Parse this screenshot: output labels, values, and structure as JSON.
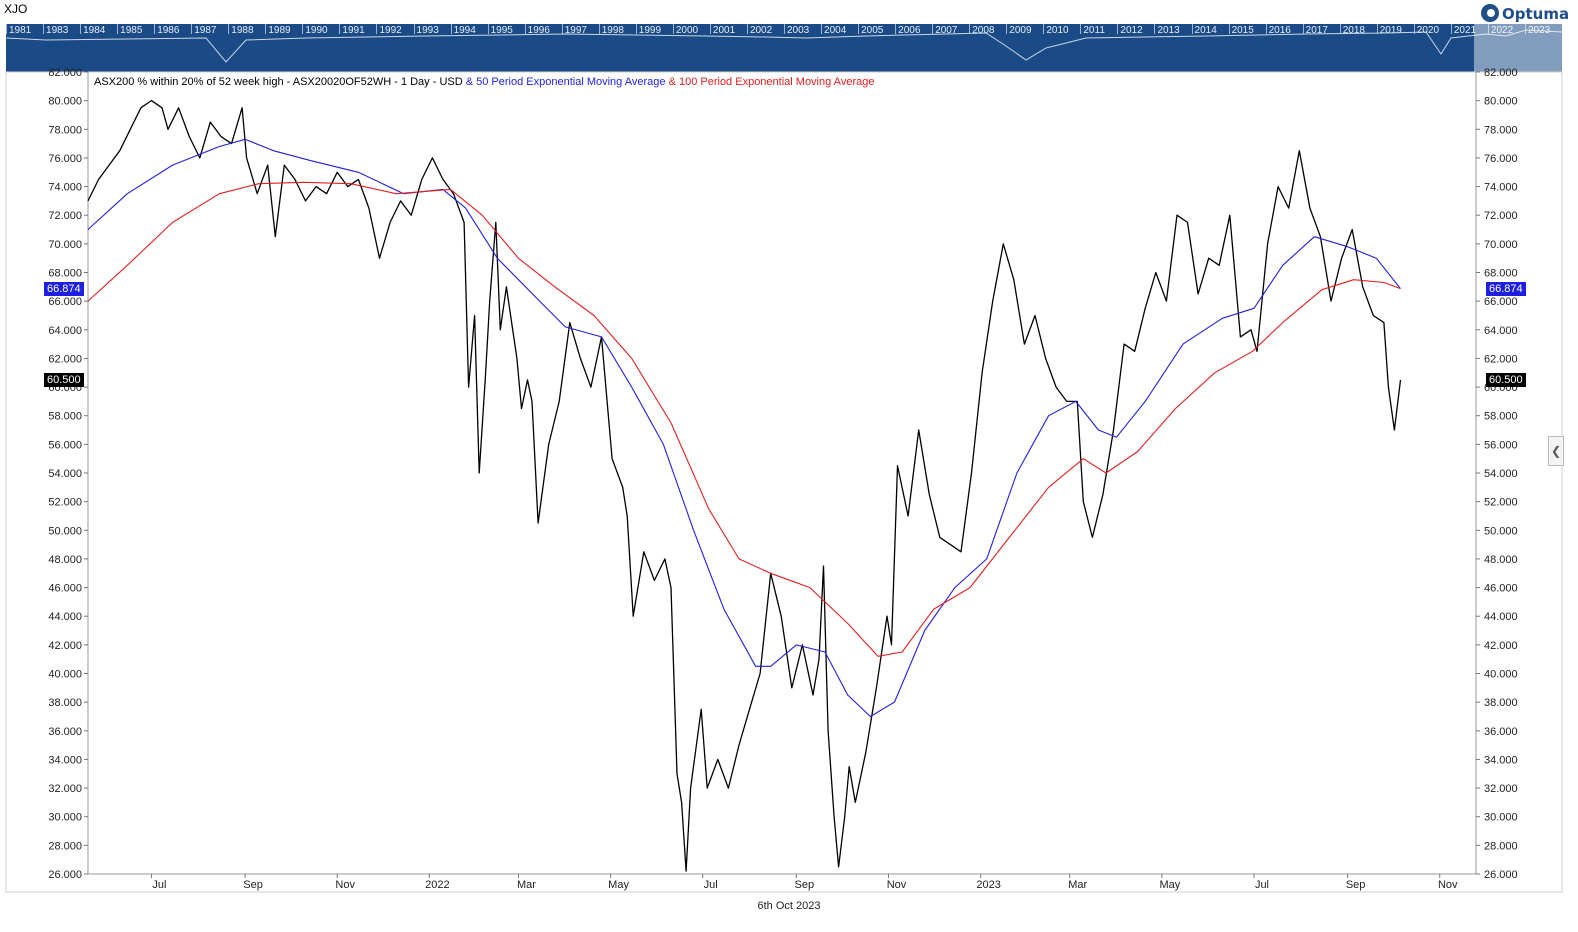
{
  "symbol": "XJO",
  "logo": {
    "text": "Optuma"
  },
  "navigator": {
    "years": [
      "1981",
      "1983",
      "1984",
      "1985",
      "1986",
      "1987",
      "1988",
      "1989",
      "1990",
      "1991",
      "1992",
      "1993",
      "1994",
      "1995",
      "1996",
      "1997",
      "1998",
      "1999",
      "2000",
      "2001",
      "2002",
      "2003",
      "2004",
      "2005",
      "2006",
      "2007",
      "2008",
      "2009",
      "2010",
      "2011",
      "2012",
      "2013",
      "2014",
      "2015",
      "2016",
      "2017",
      "2018",
      "2019",
      "2020",
      "2021",
      "2022",
      "2023"
    ]
  },
  "legend": {
    "main": "ASX200 % within 20% of 52 week high - ASX20020OF52WH - 1 Day - USD",
    "ema50": "& 50 Period Exponential Moving Average",
    "ema100": "& 100 Period Exponential Moving Average"
  },
  "tags": {
    "ema_value": "66.874",
    "last_value": "60.500"
  },
  "date_label": "6th Oct 2023",
  "colors": {
    "nav_bg": "#1b4b86",
    "price": "#000000",
    "ema50": "#1f1fe0",
    "ema100": "#e01f1f",
    "tag_blue": "#1f1fe0",
    "tag_black": "#000000"
  },
  "chart_data": {
    "type": "line",
    "y_range": [
      26,
      82
    ],
    "y_ticks": [
      "26.000",
      "28.000",
      "30.000",
      "32.000",
      "34.000",
      "36.000",
      "38.000",
      "40.000",
      "42.000",
      "44.000",
      "46.000",
      "48.000",
      "50.000",
      "52.000",
      "54.000",
      "56.000",
      "58.000",
      "60.000",
      "62.000",
      "64.000",
      "66.000",
      "68.000",
      "70.000",
      "72.000",
      "74.000",
      "76.000",
      "78.000",
      "80.000",
      "82.000"
    ],
    "x_range": [
      "2021-05-20",
      "2023-11-25"
    ],
    "x_ticks": [
      {
        "label": "Jul",
        "date": "2021-07-01"
      },
      {
        "label": "Sep",
        "date": "2021-09-01"
      },
      {
        "label": "Nov",
        "date": "2021-11-01"
      },
      {
        "label": "2022",
        "date": "2022-01-01"
      },
      {
        "label": "Mar",
        "date": "2022-03-01"
      },
      {
        "label": "May",
        "date": "2022-05-01"
      },
      {
        "label": "Jul",
        "date": "2022-07-01"
      },
      {
        "label": "Sep",
        "date": "2022-09-01"
      },
      {
        "label": "Nov",
        "date": "2022-11-01"
      },
      {
        "label": "2023",
        "date": "2023-01-01"
      },
      {
        "label": "Mar",
        "date": "2023-03-01"
      },
      {
        "label": "May",
        "date": "2023-05-01"
      },
      {
        "label": "Jul",
        "date": "2023-07-01"
      },
      {
        "label": "Sep",
        "date": "2023-09-01"
      },
      {
        "label": "Nov",
        "date": "2023-11-01"
      }
    ],
    "series": [
      {
        "name": "ASX200 % within 20% of 52 week high",
        "color": "#000000",
        "points": [
          [
            "2021-05-20",
            73
          ],
          [
            "2021-05-27",
            74.5
          ],
          [
            "2021-06-03",
            75.5
          ],
          [
            "2021-06-10",
            76.5
          ],
          [
            "2021-06-17",
            78
          ],
          [
            "2021-06-24",
            79.5
          ],
          [
            "2021-07-01",
            80
          ],
          [
            "2021-07-08",
            79.5
          ],
          [
            "2021-07-12",
            78
          ],
          [
            "2021-07-19",
            79.5
          ],
          [
            "2021-07-26",
            77.5
          ],
          [
            "2021-08-02",
            76
          ],
          [
            "2021-08-09",
            78.5
          ],
          [
            "2021-08-16",
            77.5
          ],
          [
            "2021-08-23",
            77
          ],
          [
            "2021-08-30",
            79.5
          ],
          [
            "2021-09-02",
            76
          ],
          [
            "2021-09-09",
            73.5
          ],
          [
            "2021-09-16",
            75.5
          ],
          [
            "2021-09-21",
            70.5
          ],
          [
            "2021-09-27",
            75.5
          ],
          [
            "2021-10-04",
            74.5
          ],
          [
            "2021-10-11",
            73
          ],
          [
            "2021-10-18",
            74
          ],
          [
            "2021-10-25",
            73.5
          ],
          [
            "2021-11-01",
            75
          ],
          [
            "2021-11-08",
            74
          ],
          [
            "2021-11-15",
            74.5
          ],
          [
            "2021-11-22",
            72.5
          ],
          [
            "2021-11-29",
            69
          ],
          [
            "2021-12-06",
            71.5
          ],
          [
            "2021-12-13",
            73
          ],
          [
            "2021-12-20",
            72
          ],
          [
            "2021-12-27",
            74.5
          ],
          [
            "2022-01-03",
            76
          ],
          [
            "2022-01-10",
            74.5
          ],
          [
            "2022-01-17",
            73.5
          ],
          [
            "2022-01-24",
            71.5
          ],
          [
            "2022-01-27",
            60
          ],
          [
            "2022-01-31",
            65
          ],
          [
            "2022-02-03",
            54
          ],
          [
            "2022-02-07",
            60.5
          ],
          [
            "2022-02-10",
            66
          ],
          [
            "2022-02-14",
            71.5
          ],
          [
            "2022-02-17",
            64
          ],
          [
            "2022-02-21",
            67
          ],
          [
            "2022-02-28",
            62
          ],
          [
            "2022-03-03",
            58.5
          ],
          [
            "2022-03-07",
            60.5
          ],
          [
            "2022-03-10",
            59
          ],
          [
            "2022-03-14",
            50.5
          ],
          [
            "2022-03-21",
            56
          ],
          [
            "2022-03-28",
            59
          ],
          [
            "2022-04-04",
            64.5
          ],
          [
            "2022-04-11",
            62
          ],
          [
            "2022-04-18",
            60
          ],
          [
            "2022-04-25",
            63.5
          ],
          [
            "2022-05-02",
            55
          ],
          [
            "2022-05-09",
            53
          ],
          [
            "2022-05-12",
            51
          ],
          [
            "2022-05-16",
            44
          ],
          [
            "2022-05-23",
            48.5
          ],
          [
            "2022-05-30",
            46.5
          ],
          [
            "2022-06-06",
            48
          ],
          [
            "2022-06-10",
            46
          ],
          [
            "2022-06-14",
            33
          ],
          [
            "2022-06-17",
            31
          ],
          [
            "2022-06-20",
            26.2
          ],
          [
            "2022-06-23",
            32
          ],
          [
            "2022-06-30",
            37.5
          ],
          [
            "2022-07-04",
            32
          ],
          [
            "2022-07-11",
            34
          ],
          [
            "2022-07-18",
            32
          ],
          [
            "2022-07-25",
            35
          ],
          [
            "2022-08-01",
            37.5
          ],
          [
            "2022-08-08",
            40
          ],
          [
            "2022-08-15",
            47
          ],
          [
            "2022-08-22",
            44
          ],
          [
            "2022-08-29",
            39
          ],
          [
            "2022-09-05",
            42
          ],
          [
            "2022-09-12",
            38.5
          ],
          [
            "2022-09-16",
            41
          ],
          [
            "2022-09-19",
            47.5
          ],
          [
            "2022-09-22",
            36
          ],
          [
            "2022-09-26",
            30
          ],
          [
            "2022-09-29",
            26.5
          ],
          [
            "2022-10-03",
            30
          ],
          [
            "2022-10-06",
            33.5
          ],
          [
            "2022-10-10",
            31
          ],
          [
            "2022-10-17",
            34.5
          ],
          [
            "2022-10-24",
            39
          ],
          [
            "2022-10-31",
            44
          ],
          [
            "2022-11-03",
            42
          ],
          [
            "2022-11-07",
            54.5
          ],
          [
            "2022-11-14",
            51
          ],
          [
            "2022-11-21",
            57
          ],
          [
            "2022-11-28",
            52.5
          ],
          [
            "2022-12-05",
            49.5
          ],
          [
            "2022-12-12",
            49
          ],
          [
            "2022-12-19",
            48.5
          ],
          [
            "2022-12-26",
            54
          ],
          [
            "2023-01-02",
            61
          ],
          [
            "2023-01-09",
            66
          ],
          [
            "2023-01-16",
            70
          ],
          [
            "2023-01-23",
            67.5
          ],
          [
            "2023-01-30",
            63
          ],
          [
            "2023-02-06",
            65
          ],
          [
            "2023-02-13",
            62
          ],
          [
            "2023-02-20",
            60
          ],
          [
            "2023-02-27",
            59
          ],
          [
            "2023-03-06",
            59
          ],
          [
            "2023-03-10",
            52
          ],
          [
            "2023-03-16",
            49.5
          ],
          [
            "2023-03-23",
            52.5
          ],
          [
            "2023-03-30",
            57
          ],
          [
            "2023-04-06",
            63
          ],
          [
            "2023-04-13",
            62.5
          ],
          [
            "2023-04-20",
            65.5
          ],
          [
            "2023-04-27",
            68
          ],
          [
            "2023-05-04",
            66
          ],
          [
            "2023-05-11",
            72
          ],
          [
            "2023-05-18",
            71.5
          ],
          [
            "2023-05-25",
            66.5
          ],
          [
            "2023-06-01",
            69
          ],
          [
            "2023-06-08",
            68.5
          ],
          [
            "2023-06-15",
            72
          ],
          [
            "2023-06-22",
            63.5
          ],
          [
            "2023-06-29",
            64
          ],
          [
            "2023-07-03",
            62.5
          ],
          [
            "2023-07-10",
            70
          ],
          [
            "2023-07-17",
            74
          ],
          [
            "2023-07-24",
            72.5
          ],
          [
            "2023-07-31",
            76.5
          ],
          [
            "2023-08-07",
            72.5
          ],
          [
            "2023-08-14",
            70.5
          ],
          [
            "2023-08-21",
            66
          ],
          [
            "2023-08-28",
            69
          ],
          [
            "2023-09-04",
            71
          ],
          [
            "2023-09-11",
            67
          ],
          [
            "2023-09-18",
            65
          ],
          [
            "2023-09-25",
            64.5
          ],
          [
            "2023-09-28",
            60
          ],
          [
            "2023-10-02",
            57
          ],
          [
            "2023-10-06",
            60.5
          ]
        ]
      },
      {
        "name": "50 Period Exponential Moving Average",
        "color": "#1f1fe0",
        "points": [
          [
            "2021-05-20",
            71
          ],
          [
            "2021-06-15",
            73.5
          ],
          [
            "2021-07-15",
            75.5
          ],
          [
            "2021-08-15",
            76.8
          ],
          [
            "2021-09-01",
            77.3
          ],
          [
            "2021-09-20",
            76.5
          ],
          [
            "2021-10-15",
            75.8
          ],
          [
            "2021-11-15",
            75
          ],
          [
            "2021-12-15",
            73.5
          ],
          [
            "2022-01-10",
            73.8
          ],
          [
            "2022-01-25",
            72.5
          ],
          [
            "2022-02-15",
            69
          ],
          [
            "2022-03-15",
            66
          ],
          [
            "2022-04-01",
            64.2
          ],
          [
            "2022-04-25",
            63.5
          ],
          [
            "2022-05-15",
            60
          ],
          [
            "2022-06-05",
            56
          ],
          [
            "2022-06-25",
            50
          ],
          [
            "2022-07-15",
            44.5
          ],
          [
            "2022-08-05",
            40.5
          ],
          [
            "2022-08-15",
            40.5
          ],
          [
            "2022-09-01",
            42
          ],
          [
            "2022-09-20",
            41.5
          ],
          [
            "2022-10-05",
            38.5
          ],
          [
            "2022-10-20",
            37
          ],
          [
            "2022-11-05",
            38
          ],
          [
            "2022-11-25",
            43
          ],
          [
            "2022-12-15",
            46
          ],
          [
            "2023-01-05",
            48
          ],
          [
            "2023-01-25",
            54
          ],
          [
            "2023-02-15",
            58
          ],
          [
            "2023-03-05",
            59
          ],
          [
            "2023-03-20",
            57
          ],
          [
            "2023-04-01",
            56.5
          ],
          [
            "2023-04-20",
            59
          ],
          [
            "2023-05-15",
            63
          ],
          [
            "2023-06-10",
            64.8
          ],
          [
            "2023-07-01",
            65.5
          ],
          [
            "2023-07-20",
            68.5
          ],
          [
            "2023-08-10",
            70.5
          ],
          [
            "2023-09-01",
            69.8
          ],
          [
            "2023-09-20",
            69
          ],
          [
            "2023-10-06",
            66.874
          ]
        ]
      },
      {
        "name": "100 Period Exponential Moving Average",
        "color": "#e01f1f",
        "points": [
          [
            "2021-05-20",
            66
          ],
          [
            "2021-06-15",
            68.5
          ],
          [
            "2021-07-15",
            71.5
          ],
          [
            "2021-08-15",
            73.5
          ],
          [
            "2021-09-10",
            74.2
          ],
          [
            "2021-10-10",
            74.3
          ],
          [
            "2021-11-10",
            74.2
          ],
          [
            "2021-12-10",
            73.5
          ],
          [
            "2022-01-15",
            73.8
          ],
          [
            "2022-02-05",
            72
          ],
          [
            "2022-03-01",
            69
          ],
          [
            "2022-03-25",
            67
          ],
          [
            "2022-04-20",
            65
          ],
          [
            "2022-05-15",
            62
          ],
          [
            "2022-06-10",
            57.5
          ],
          [
            "2022-07-05",
            51.5
          ],
          [
            "2022-07-25",
            48
          ],
          [
            "2022-08-15",
            47
          ],
          [
            "2022-09-10",
            46
          ],
          [
            "2022-10-05",
            43.5
          ],
          [
            "2022-10-25",
            41.2
          ],
          [
            "2022-11-10",
            41.5
          ],
          [
            "2022-12-01",
            44.5
          ],
          [
            "2022-12-25",
            46
          ],
          [
            "2023-01-20",
            49.5
          ],
          [
            "2023-02-15",
            53
          ],
          [
            "2023-03-10",
            55
          ],
          [
            "2023-03-25",
            54
          ],
          [
            "2023-04-15",
            55.5
          ],
          [
            "2023-05-10",
            58.5
          ],
          [
            "2023-06-05",
            61
          ],
          [
            "2023-06-30",
            62.5
          ],
          [
            "2023-07-20",
            64.5
          ],
          [
            "2023-08-15",
            66.8
          ],
          [
            "2023-09-05",
            67.5
          ],
          [
            "2023-09-25",
            67.3
          ],
          [
            "2023-10-06",
            66.874
          ]
        ]
      }
    ]
  }
}
